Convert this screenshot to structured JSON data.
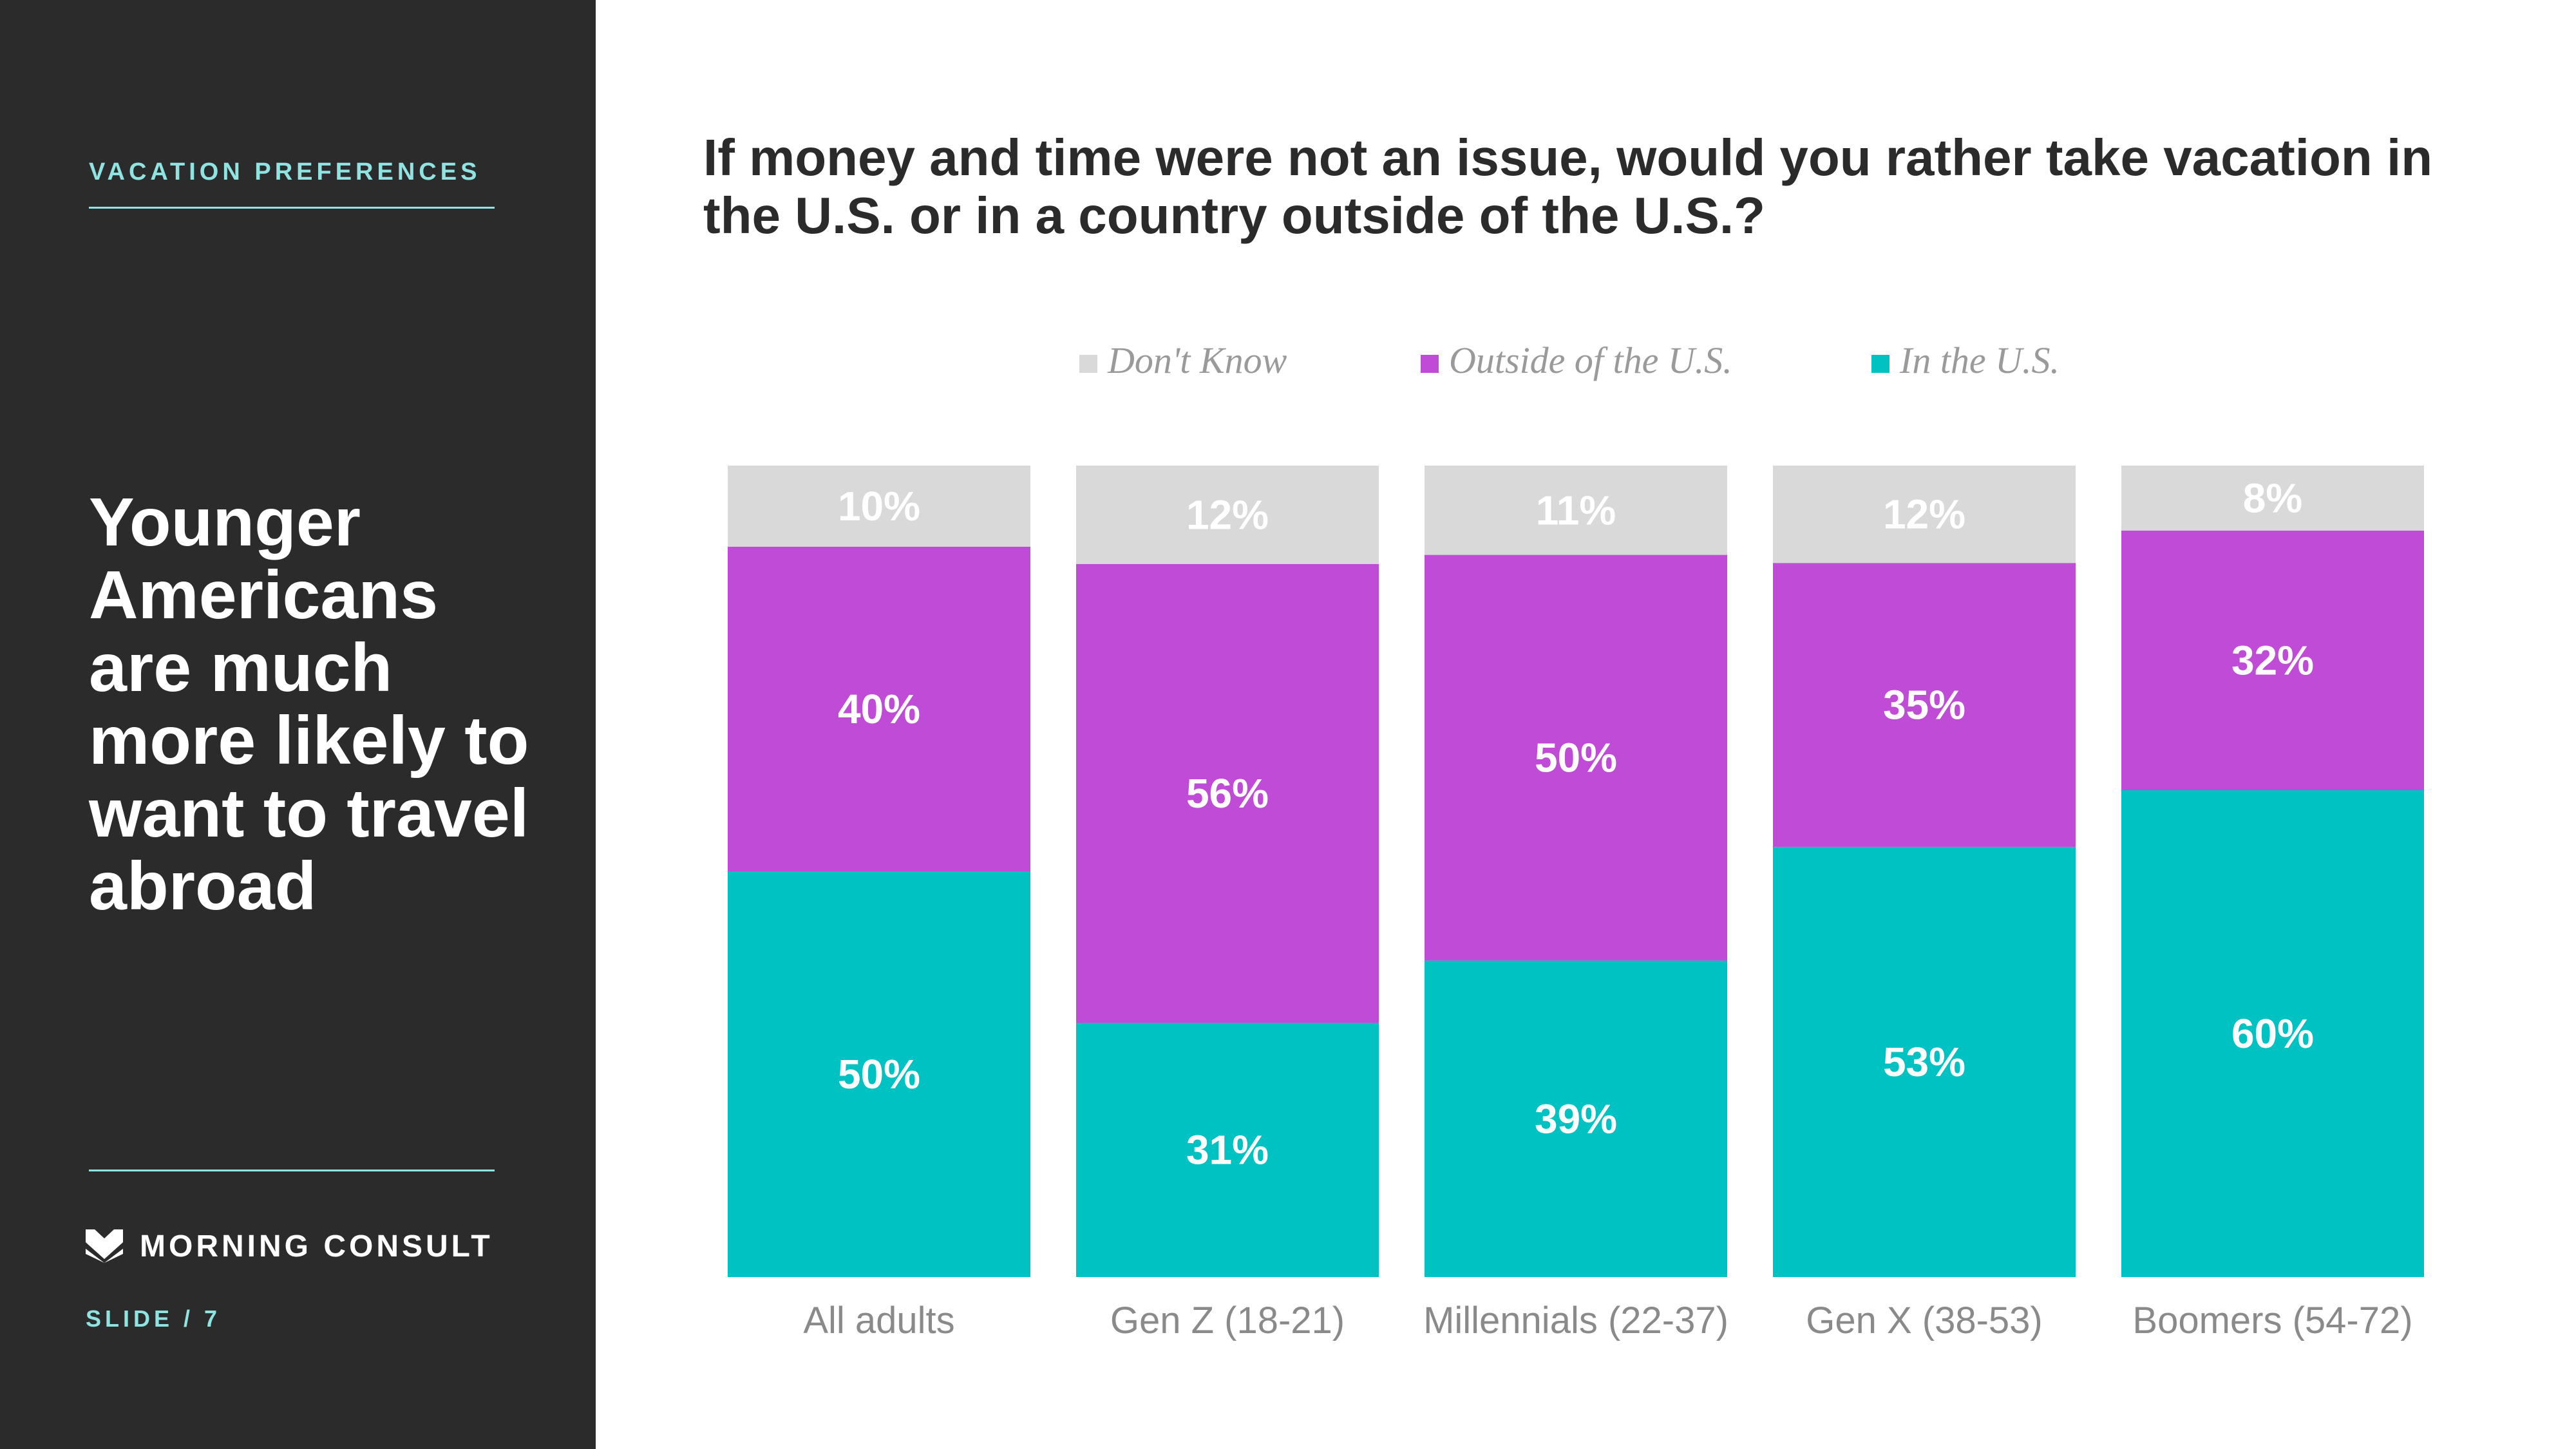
{
  "sidebar": {
    "section_label": "VACATION PREFERENCES",
    "headline": "Younger Americans are much more likely to want to travel abroad",
    "brand": "MORNING CONSULT",
    "slide": "SLIDE /  7",
    "bg_color": "#2b2b2b",
    "accent_color": "#8fe3e0",
    "logo_icon": "morning-consult-m-logo"
  },
  "question": "If money and time were not an issue, would you rather take vacation in the U.S. or in a country outside of the U.S.?",
  "chart_data": {
    "type": "bar",
    "stacked": true,
    "categories": [
      "All adults",
      "Gen Z (18-21)",
      "Millennials (22-37)",
      "Gen X (38-53)",
      "Boomers (54-72)"
    ],
    "series": [
      {
        "name": "In the U.S.",
        "color": "#00c2c2",
        "values": [
          50,
          31,
          39,
          53,
          60
        ]
      },
      {
        "name": "Outside of the U.S.",
        "color": "#c04bd6",
        "values": [
          40,
          56,
          50,
          35,
          32
        ]
      },
      {
        "name": "Don't Know",
        "color": "#d9d9d9",
        "values": [
          10,
          12,
          11,
          12,
          8
        ]
      }
    ],
    "legend_order": [
      "Don't Know",
      "Outside of the U.S.",
      "In the U.S."
    ],
    "legend_position": "top",
    "value_suffix": "%",
    "ylim": [
      0,
      100
    ],
    "grid": false
  }
}
